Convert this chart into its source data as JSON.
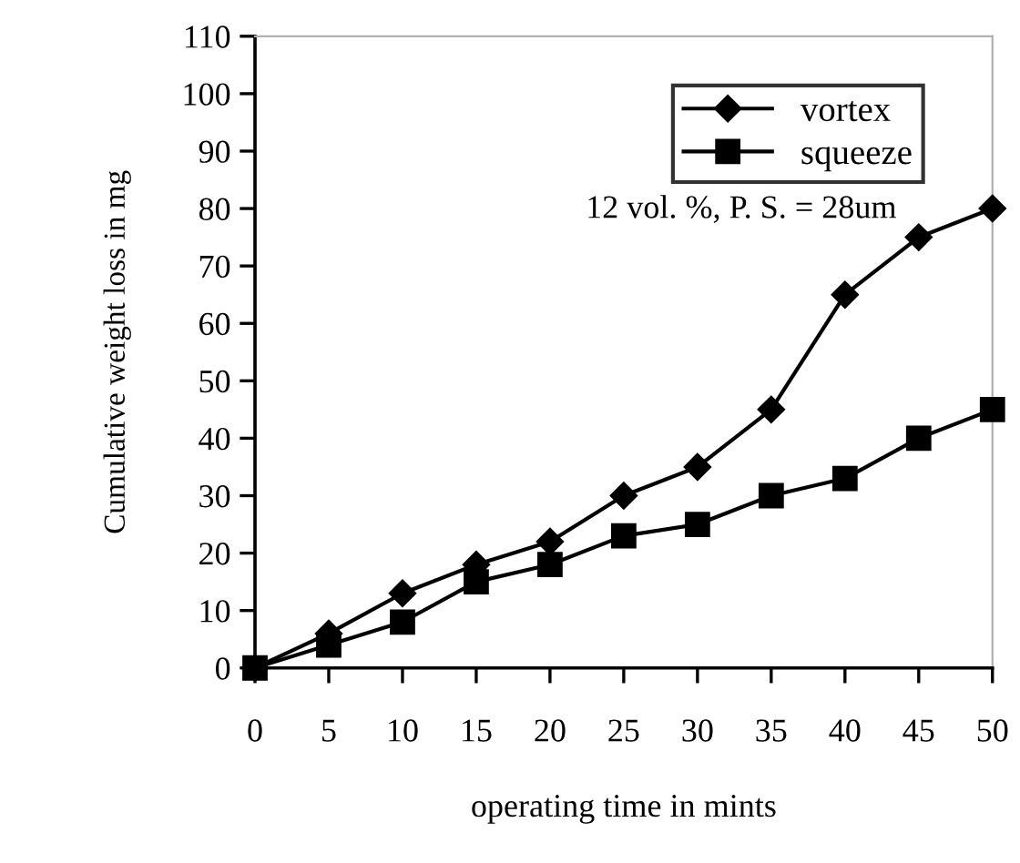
{
  "chart_data": {
    "type": "line",
    "xlabel": "operating time in mints",
    "ylabel": "Cumulative weight loss in mg",
    "x": [
      0,
      5,
      10,
      15,
      20,
      25,
      30,
      35,
      40,
      45,
      50
    ],
    "series": [
      {
        "name": "vortex",
        "color": "#000000",
        "marker": "diamond",
        "values": [
          0,
          6,
          13,
          18,
          22,
          30,
          35,
          45,
          65,
          75,
          80
        ]
      },
      {
        "name": "squeeze",
        "color": "#000000",
        "marker": "square",
        "values": [
          0,
          4,
          8,
          15,
          18,
          23,
          25,
          30,
          33,
          40,
          45
        ]
      }
    ],
    "xlim": [
      0,
      50
    ],
    "xticks": [
      0,
      5,
      10,
      15,
      20,
      25,
      30,
      35,
      40,
      45,
      50
    ],
    "ylim": [
      0,
      110
    ],
    "yticks": [
      0,
      10,
      20,
      30,
      40,
      50,
      60,
      70,
      80,
      90,
      100,
      110
    ],
    "annotations": [
      "12 vol. %, P. S. = 28um"
    ],
    "legend": "top right",
    "grid": false,
    "line_style": "solid"
  }
}
